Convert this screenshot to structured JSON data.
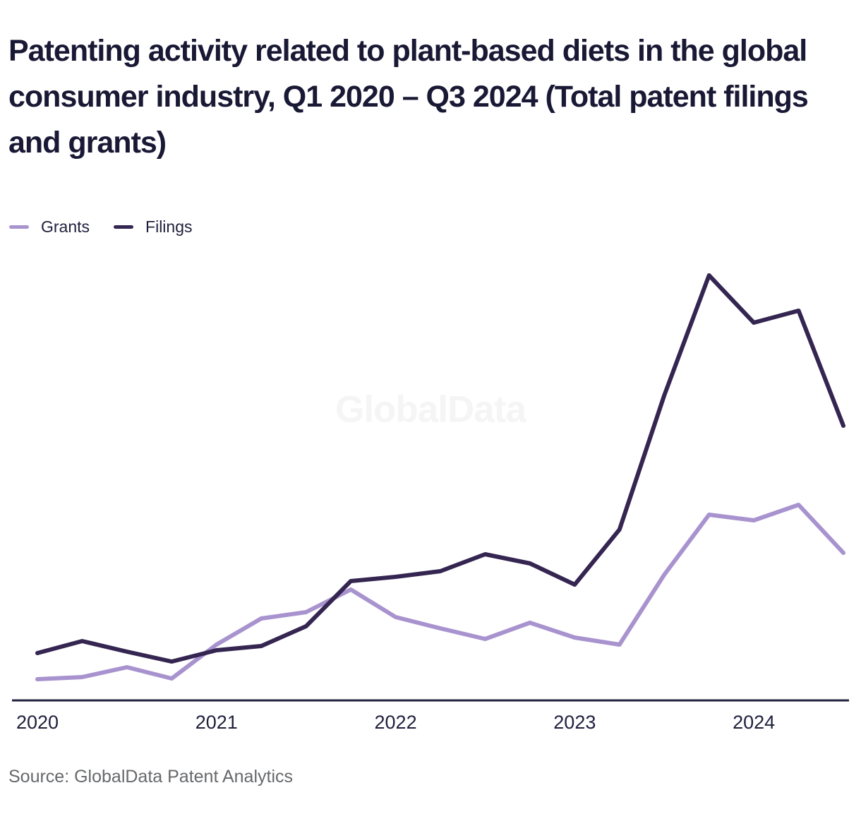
{
  "title": "Patenting activity related to plant-based diets in the global consumer industry, Q1 2020 – Q3 2024 (Total patent filings and grants)",
  "legend": [
    {
      "label": "Grants",
      "color": "#a893cf"
    },
    {
      "label": "Filings",
      "color": "#342551"
    }
  ],
  "watermark": "GlobalData",
  "source": "Source: GlobalData Patent Analytics",
  "colors": {
    "title_text": "#191935",
    "axis_line": "#20203e",
    "tick_text": "#20203e",
    "source_text": "#66686b",
    "watermark_text": "#f5f5f6",
    "grants_line": "#a893cf",
    "filings_line": "#342551"
  },
  "chart_data": {
    "type": "line",
    "x": [
      "Q1 2020",
      "Q2 2020",
      "Q3 2020",
      "Q4 2020",
      "Q1 2021",
      "Q2 2021",
      "Q3 2021",
      "Q4 2021",
      "Q1 2022",
      "Q2 2022",
      "Q3 2022",
      "Q4 2022",
      "Q1 2023",
      "Q2 2023",
      "Q3 2023",
      "Q4 2023",
      "Q1 2024",
      "Q2 2024",
      "Q3 2024"
    ],
    "x_axis_tick_labels": [
      "2020",
      "2021",
      "2022",
      "2023",
      "2024"
    ],
    "series": [
      {
        "name": "Grants",
        "color": "#a893cf",
        "values": [
          30,
          33,
          47,
          31,
          79,
          116,
          125,
          157,
          118,
          102,
          87,
          110,
          89,
          79,
          178,
          263,
          255,
          277,
          209
        ]
      },
      {
        "name": "Filings",
        "color": "#342551",
        "values": [
          67,
          84,
          69,
          55,
          71,
          77,
          105,
          169,
          175,
          183,
          207,
          194,
          164,
          242,
          432,
          602,
          535,
          552,
          389
        ]
      }
    ],
    "ylim": [
      0,
      650
    ],
    "y_axis_visible": false,
    "gridlines": false,
    "legend_position": "top-left"
  }
}
